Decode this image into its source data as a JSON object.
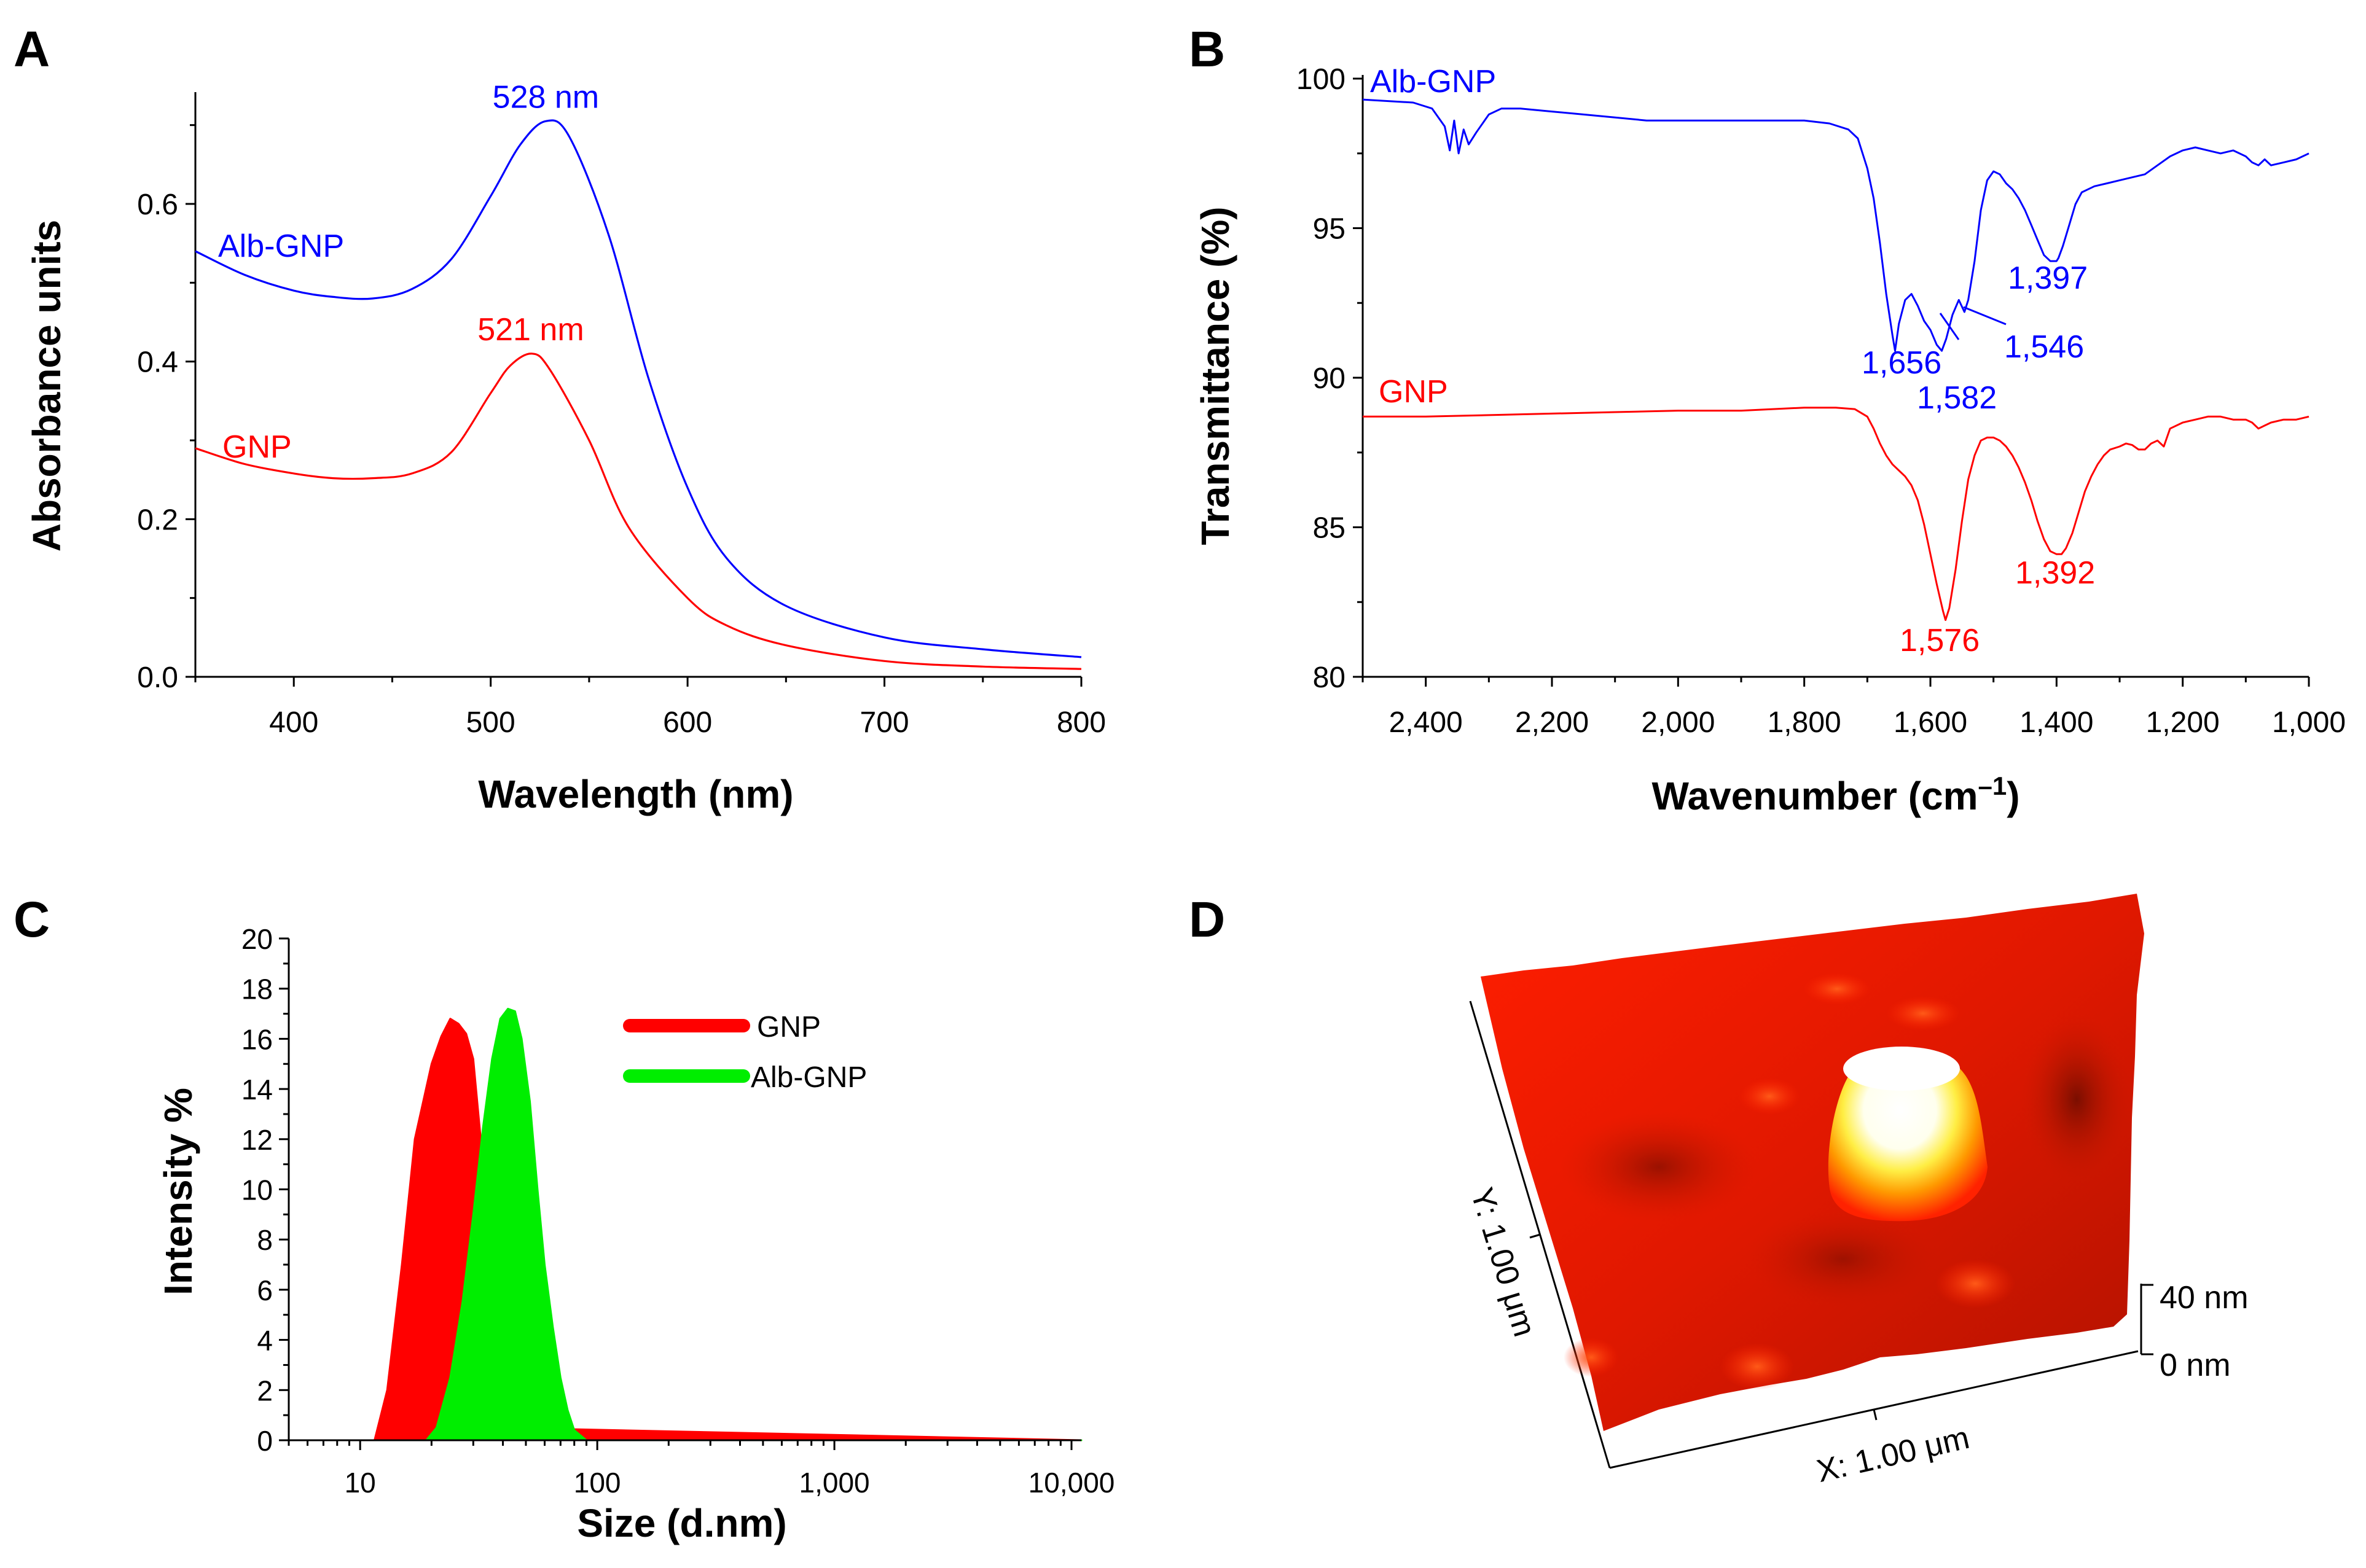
{
  "figure": {
    "panel_letters": [
      "A",
      "B",
      "C",
      "D"
    ]
  },
  "colors": {
    "axis": "#000000",
    "alb_gnp_line": "#0000ff",
    "gnp_line": "#ff0000",
    "gnp_fill": "#ff0000",
    "alb_gnp_fill": "#00ee00"
  },
  "chart_data": [
    {
      "panel": "A",
      "type": "line",
      "xlabel": "Wavelength (nm)",
      "ylabel": "Absorbance units",
      "xlim": [
        350,
        800
      ],
      "ylim": [
        0.0,
        0.72
      ],
      "x_ticks": [
        400,
        500,
        600,
        700,
        800
      ],
      "x_tick_labels": [
        "400",
        "500",
        "600",
        "700",
        "800"
      ],
      "y_ticks": [
        0.0,
        0.2,
        0.4,
        0.6
      ],
      "y_tick_labels": [
        "0.0",
        "0.2",
        "0.4",
        "0.6"
      ],
      "grid": false,
      "series": [
        {
          "name": "Alb-GNP",
          "color": "#0000ff",
          "x": [
            350,
            375,
            400,
            420,
            440,
            460,
            480,
            500,
            515,
            528,
            540,
            560,
            580,
            600,
            620,
            650,
            700,
            750,
            800
          ],
          "values": [
            0.54,
            0.51,
            0.49,
            0.482,
            0.48,
            0.492,
            0.53,
            0.61,
            0.675,
            0.705,
            0.685,
            0.56,
            0.38,
            0.24,
            0.15,
            0.09,
            0.05,
            0.035,
            0.025
          ]
        },
        {
          "name": "GNP",
          "color": "#ff0000",
          "x": [
            350,
            375,
            400,
            420,
            440,
            460,
            480,
            500,
            510,
            521,
            530,
            550,
            570,
            600,
            620,
            650,
            700,
            750,
            800
          ],
          "values": [
            0.29,
            0.27,
            0.258,
            0.252,
            0.252,
            0.258,
            0.285,
            0.36,
            0.395,
            0.41,
            0.39,
            0.3,
            0.19,
            0.1,
            0.065,
            0.04,
            0.02,
            0.013,
            0.01
          ]
        }
      ],
      "annotations": [
        {
          "text": "528 nm",
          "series": "Alb-GNP",
          "x": 528
        },
        {
          "text": "521 nm",
          "series": "GNP",
          "x": 521
        }
      ],
      "series_labels": [
        "Alb-GNP",
        "GNP"
      ]
    },
    {
      "panel": "B",
      "type": "line",
      "xlabel": "Wavenumber (cm",
      "xlabel_superscript": "–1",
      "xlabel_suffix": ")",
      "ylabel": "Transmittance (%)",
      "xlim": [
        2500,
        1000
      ],
      "ylim": [
        80,
        100
      ],
      "x_ticks": [
        2400,
        2200,
        2000,
        1800,
        1600,
        1400,
        1200,
        1000
      ],
      "x_tick_labels": [
        "2,400",
        "2,200",
        "2,000",
        "1,800",
        "1,600",
        "1,400",
        "1,200",
        "1,000"
      ],
      "y_ticks": [
        80,
        85,
        90,
        95,
        100
      ],
      "y_tick_labels": [
        "80",
        "85",
        "90",
        "95",
        "100"
      ],
      "grid": false,
      "series": [
        {
          "name": "Alb-GNP",
          "color": "#0000ff",
          "x": [
            2500,
            2420,
            2390,
            2370,
            2362,
            2355,
            2348,
            2340,
            2332,
            2320,
            2300,
            2280,
            2250,
            2200,
            2150,
            2100,
            2050,
            2000,
            1950,
            1900,
            1850,
            1800,
            1760,
            1730,
            1715,
            1700,
            1690,
            1680,
            1670,
            1660,
            1656,
            1650,
            1640,
            1630,
            1620,
            1610,
            1600,
            1590,
            1582,
            1575,
            1565,
            1555,
            1546,
            1540,
            1530,
            1520,
            1510,
            1500,
            1490,
            1480,
            1470,
            1460,
            1450,
            1440,
            1430,
            1420,
            1410,
            1400,
            1397,
            1390,
            1380,
            1370,
            1360,
            1350,
            1340,
            1320,
            1300,
            1280,
            1260,
            1240,
            1220,
            1200,
            1180,
            1160,
            1140,
            1120,
            1100,
            1090,
            1080,
            1070,
            1060,
            1040,
            1020,
            1000
          ],
          "values": [
            99.3,
            99.2,
            99.0,
            98.4,
            97.6,
            98.6,
            97.5,
            98.3,
            97.8,
            98.2,
            98.8,
            99.0,
            99.0,
            98.9,
            98.8,
            98.7,
            98.6,
            98.6,
            98.6,
            98.6,
            98.6,
            98.6,
            98.5,
            98.3,
            98.0,
            97.0,
            96.0,
            94.5,
            92.8,
            91.4,
            90.9,
            91.8,
            92.6,
            92.8,
            92.4,
            91.9,
            91.6,
            91.1,
            90.9,
            91.3,
            92.1,
            92.6,
            92.2,
            92.6,
            93.9,
            95.6,
            96.6,
            96.9,
            96.8,
            96.5,
            96.3,
            96.0,
            95.6,
            95.1,
            94.6,
            94.1,
            93.9,
            93.9,
            94.0,
            94.4,
            95.1,
            95.8,
            96.2,
            96.3,
            96.4,
            96.5,
            96.6,
            96.7,
            96.8,
            97.1,
            97.4,
            97.6,
            97.7,
            97.6,
            97.5,
            97.6,
            97.4,
            97.2,
            97.1,
            97.3,
            97.1,
            97.2,
            97.3,
            97.5
          ]
        },
        {
          "name": "GNP",
          "color": "#ff0000",
          "x": [
            2500,
            2400,
            2300,
            2200,
            2100,
            2000,
            1900,
            1800,
            1750,
            1720,
            1700,
            1690,
            1680,
            1670,
            1660,
            1650,
            1640,
            1630,
            1620,
            1610,
            1600,
            1590,
            1580,
            1576,
            1570,
            1560,
            1550,
            1540,
            1530,
            1520,
            1510,
            1500,
            1490,
            1480,
            1470,
            1460,
            1450,
            1440,
            1430,
            1420,
            1410,
            1400,
            1392,
            1385,
            1375,
            1365,
            1355,
            1345,
            1335,
            1325,
            1315,
            1300,
            1290,
            1280,
            1270,
            1260,
            1250,
            1240,
            1230,
            1220,
            1200,
            1180,
            1160,
            1140,
            1120,
            1100,
            1090,
            1080,
            1070,
            1060,
            1040,
            1020,
            1000
          ],
          "values": [
            88.7,
            88.7,
            88.75,
            88.8,
            88.85,
            88.9,
            88.9,
            89.0,
            89.0,
            88.95,
            88.7,
            88.3,
            87.8,
            87.4,
            87.1,
            86.9,
            86.7,
            86.4,
            85.9,
            85.1,
            84.1,
            83.1,
            82.2,
            81.9,
            82.3,
            83.6,
            85.2,
            86.6,
            87.4,
            87.9,
            88.0,
            88.0,
            87.9,
            87.7,
            87.4,
            87.0,
            86.5,
            85.9,
            85.2,
            84.6,
            84.2,
            84.1,
            84.1,
            84.3,
            84.8,
            85.5,
            86.2,
            86.7,
            87.1,
            87.4,
            87.6,
            87.7,
            87.8,
            87.75,
            87.6,
            87.6,
            87.8,
            87.9,
            87.7,
            88.3,
            88.5,
            88.6,
            88.7,
            88.7,
            88.6,
            88.6,
            88.5,
            88.3,
            88.4,
            88.5,
            88.6,
            88.6,
            88.7
          ]
        }
      ],
      "annotations": [
        {
          "text": "1,656",
          "series": "Alb-GNP",
          "x": 1656
        },
        {
          "text": "1,582",
          "series": "Alb-GNP",
          "x": 1582
        },
        {
          "text": "1,546",
          "series": "Alb-GNP",
          "x": 1546
        },
        {
          "text": "1,397",
          "series": "Alb-GNP",
          "x": 1397
        },
        {
          "text": "1,576",
          "series": "GNP",
          "x": 1576
        },
        {
          "text": "1,392",
          "series": "GNP",
          "x": 1392
        }
      ],
      "series_labels": [
        "Alb-GNP",
        "GNP"
      ]
    },
    {
      "panel": "C",
      "type": "area",
      "xscale": "log",
      "xlabel": "Size (d.nm)",
      "ylabel": "Intensity %",
      "xlim": [
        5,
        11000
      ],
      "ylim": [
        0,
        20
      ],
      "x_ticks": [
        10,
        100,
        1000,
        10000
      ],
      "x_tick_labels": [
        "10",
        "100",
        "1,000",
        "10,000"
      ],
      "y_ticks": [
        0,
        2,
        4,
        6,
        8,
        10,
        12,
        14,
        16,
        18,
        20
      ],
      "y_tick_labels": [
        "0",
        "2",
        "4",
        "6",
        "8",
        "10",
        "12",
        "14",
        "16",
        "18",
        "20"
      ],
      "grid": false,
      "legend": "top-center",
      "series": [
        {
          "name": "GNP",
          "color": "#ff0000",
          "x": [
            5,
            11.5,
            13,
            15,
            17,
            20,
            22,
            24,
            26,
            28,
            30,
            33,
            36,
            40,
            11000
          ],
          "values": [
            0,
            0,
            2,
            7,
            12,
            15,
            16.1,
            16.8,
            16.6,
            16.2,
            15.2,
            11,
            6,
            0.5,
            0
          ]
        },
        {
          "name": "Alb-GNP",
          "color": "#00ee00",
          "x": [
            5,
            19,
            21,
            24,
            27,
            30,
            33,
            36,
            39,
            42,
            45,
            48,
            52,
            56,
            60,
            65,
            70,
            75,
            80,
            90,
            11000
          ],
          "values": [
            0,
            0,
            0.5,
            2.5,
            5.5,
            9,
            12.5,
            15.2,
            16.8,
            17.2,
            17.1,
            16,
            13.5,
            10,
            7,
            4.5,
            2.5,
            1.2,
            0.4,
            0,
            0
          ]
        }
      ]
    }
  ],
  "panel_d": {
    "y_label": "Y: 1.00 μm",
    "x_label": "X: 1.00 μm",
    "z_top_label": "40 nm",
    "z_bottom_label": "0 nm"
  }
}
